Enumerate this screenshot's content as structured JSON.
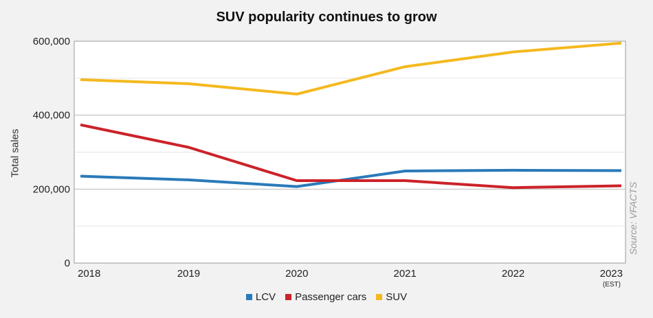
{
  "chart_data": {
    "type": "line",
    "title": "SUV popularity continues to grow",
    "ylabel": "Total sales",
    "xlabel": "",
    "source": "Source: VFACTS",
    "categories": [
      "2018",
      "2019",
      "2020",
      "2021",
      "2022",
      "2023"
    ],
    "category_notes": [
      "",
      "",
      "",
      "",
      "",
      "(EST)"
    ],
    "ylim": [
      0,
      600000
    ],
    "yticks": [
      0,
      200000,
      400000,
      600000
    ],
    "ytick_labels": [
      "0",
      "200,000",
      "400,000",
      "600,000"
    ],
    "grid": true,
    "legend_position": "bottom",
    "series": [
      {
        "name": "LCV",
        "color": "#2a7ab9",
        "values": [
          235000,
          225000,
          207000,
          249000,
          251000,
          250000
        ]
      },
      {
        "name": "Passenger cars",
        "color": "#cc2229",
        "values": [
          374000,
          313000,
          223000,
          223000,
          204000,
          209000
        ]
      },
      {
        "name": "SUV",
        "color": "#f4b91f",
        "values": [
          496000,
          485000,
          457000,
          531000,
          571000,
          595000
        ]
      }
    ]
  }
}
